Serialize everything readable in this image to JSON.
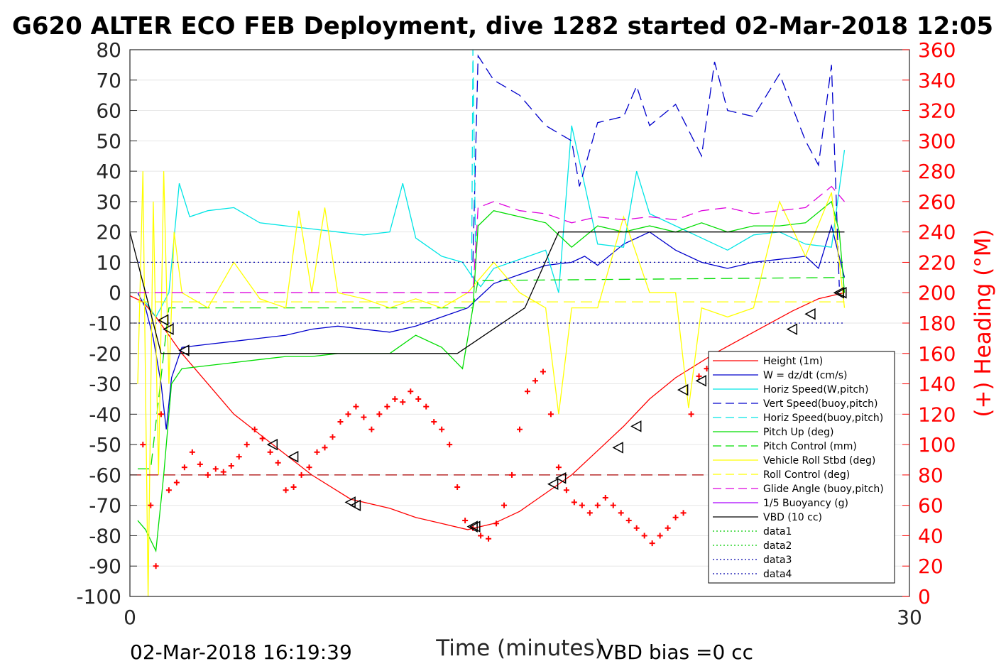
{
  "chart_data": {
    "type": "line",
    "title": "G620 ALTER ECO FEB Deployment, dive 1282 started 02-Mar-2018 12:05",
    "xlabel": "Time (minutes)",
    "ylabel_right": "(+) Heading (°M)",
    "xlim": [
      0,
      30
    ],
    "ylim": [
      -100,
      80
    ],
    "ylim_right": [
      0,
      360
    ],
    "x_ticks": [
      "0",
      "30"
    ],
    "y_ticks": [
      "80",
      "70",
      "60",
      "50",
      "40",
      "30",
      "20",
      "10",
      "0",
      "-10",
      "-20",
      "-30",
      "-40",
      "-50",
      "-60",
      "-70",
      "-80",
      "-90",
      "-100"
    ],
    "y_ticks_right": [
      "360",
      "340",
      "320",
      "300",
      "280",
      "260",
      "240",
      "220",
      "200",
      "180",
      "160",
      "140",
      "120",
      "100",
      "80",
      "60",
      "40",
      "20",
      "0"
    ],
    "grid": "horizontal",
    "legend_position": "lower-right",
    "legend": [
      {
        "label": "Height (1m)",
        "color": "#ff0000",
        "dash": "solid"
      },
      {
        "label": "W = dz/dt (cm/s)",
        "color": "#0000cc",
        "dash": "solid"
      },
      {
        "label": "Horiz Speed(W,pitch)",
        "color": "#00e5e5",
        "dash": "solid"
      },
      {
        "label": "Vert Speed(buoy,pitch)",
        "color": "#0000cc",
        "dash": "dashed"
      },
      {
        "label": "Horiz Speed(buoy,pitch)",
        "color": "#00e5e5",
        "dash": "dashed"
      },
      {
        "label": "Pitch Up (deg)",
        "color": "#00dd00",
        "dash": "solid"
      },
      {
        "label": "Pitch Control (mm)",
        "color": "#00dd00",
        "dash": "dashed"
      },
      {
        "label": "Vehicle Roll Stbd (deg)",
        "color": "#ffff00",
        "dash": "solid"
      },
      {
        "label": "Roll Control (deg)",
        "color": "#ffff00",
        "dash": "dashed"
      },
      {
        "label": "Glide Angle (buoy,pitch)",
        "color": "#dd00dd",
        "dash": "dashed"
      },
      {
        "label": "1/5 Buoyancy (g)",
        "color": "#aa00ff",
        "dash": "solid"
      },
      {
        "label": "VBD (10 cc)",
        "color": "#000000",
        "dash": "solid"
      },
      {
        "label": "data1",
        "color": "#00cc00",
        "dash": "dotted"
      },
      {
        "label": "data2",
        "color": "#00cc00",
        "dash": "dotted"
      },
      {
        "label": "data3",
        "color": "#0000aa",
        "dash": "dotted"
      },
      {
        "label": "data4",
        "color": "#0000aa",
        "dash": "dotted"
      }
    ],
    "series": [
      {
        "name": "Height (1m)",
        "color": "#ff0000",
        "dash": "solid",
        "x": [
          0,
          0.5,
          1.0,
          1.5,
          2.0,
          3.0,
          4.0,
          5.5,
          7.0,
          8.5,
          10.0,
          11.0,
          12.0,
          13.0,
          14.0,
          15.0,
          16.0,
          17.0,
          18.0,
          19.0,
          20.0,
          21.0,
          22.5,
          24.0,
          25.5,
          26.5,
          27.5
        ],
        "y": [
          -1,
          -3,
          -8,
          -14,
          -20,
          -30,
          -40,
          -50,
          -60,
          -68,
          -71,
          -74,
          -76,
          -78,
          -76,
          -72,
          -66,
          -60,
          -52,
          -44,
          -35,
          -28,
          -20,
          -13,
          -6,
          -2,
          0
        ]
      },
      {
        "name": "W = dz/dt (cm/s)",
        "color": "#0000cc",
        "dash": "solid",
        "x": [
          0.3,
          0.6,
          0.9,
          1.2,
          1.4,
          1.6,
          2.0,
          3.0,
          4.0,
          5.0,
          6.0,
          7.0,
          8.0,
          9.0,
          10.0,
          11.0,
          12.0,
          13.0,
          13.5,
          14.0,
          15.0,
          16.0,
          17.0,
          17.5,
          18.0,
          19.0,
          20.0,
          21.0,
          22.0,
          23.0,
          24.0,
          25.0,
          26.0,
          26.5,
          27.0,
          27.5
        ],
        "y": [
          0,
          -5,
          -15,
          -30,
          -45,
          -28,
          -18,
          -17,
          -16,
          -15,
          -14,
          -12,
          -11,
          -12,
          -13,
          -11,
          -8,
          -5,
          -1,
          3,
          6,
          9,
          10,
          12,
          9,
          16,
          20,
          14,
          10,
          8,
          10,
          11,
          12,
          8,
          22,
          5
        ]
      },
      {
        "name": "Horiz Speed(W,pitch)",
        "color": "#00e5e5",
        "dash": "solid",
        "x": [
          0.5,
          1.0,
          1.5,
          1.9,
          2.3,
          3.0,
          4.0,
          5.0,
          6.0,
          7.0,
          8.0,
          9.0,
          10.0,
          10.5,
          11.0,
          12.0,
          12.8,
          13.2,
          13.5,
          14.0,
          15.0,
          16.0,
          16.5,
          17.0,
          18.0,
          19.0,
          19.5,
          20.0,
          21.0,
          22.0,
          23.0,
          24.0,
          25.0,
          26.0,
          27.0,
          27.5
        ],
        "y": [
          -2,
          -8,
          0,
          36,
          25,
          27,
          28,
          23,
          22,
          21,
          20,
          19,
          20,
          36,
          18,
          12,
          10,
          5,
          2,
          8,
          11,
          14,
          0,
          55,
          16,
          15,
          40,
          26,
          22,
          18,
          14,
          19,
          20,
          16,
          15,
          47
        ]
      },
      {
        "name": "Vert Speed(buoy,pitch)",
        "color": "#0000cc",
        "dash": "dashed",
        "x": [
          13.2,
          13.4,
          14.0,
          15.0,
          16.0,
          17.0,
          17.3,
          18.0,
          19.0,
          19.5,
          20.0,
          21.0,
          22.0,
          22.5,
          23.0,
          24.0,
          25.0,
          26.0,
          26.5,
          27.0,
          27.3
        ],
        "y": [
          10,
          78,
          70,
          65,
          55,
          50,
          35,
          56,
          58,
          68,
          55,
          62,
          45,
          76,
          60,
          58,
          72,
          50,
          42,
          75,
          2
        ]
      },
      {
        "name": "Horiz Speed(buoy,pitch)",
        "color": "#00e5e5",
        "dash": "dashed",
        "x": [
          13.15,
          13.2,
          13.3
        ],
        "y": [
          5,
          80,
          15
        ]
      },
      {
        "name": "Pitch Up (deg)",
        "color": "#00dd00",
        "dash": "solid",
        "x": [
          0.3,
          0.6,
          1.0,
          1.3,
          1.6,
          2.0,
          3.0,
          4.0,
          5.0,
          6.0,
          7.0,
          8.0,
          9.0,
          10.0,
          11.0,
          12.0,
          12.8,
          13.2,
          13.4,
          14.0,
          15.0,
          16.0,
          17.0,
          18.0,
          19.0,
          20.0,
          21.0,
          22.0,
          23.0,
          24.0,
          25.0,
          26.0,
          27.0,
          27.3,
          27.5
        ],
        "y": [
          -75,
          -78,
          -85,
          -60,
          -30,
          -25,
          -24,
          -23,
          -22,
          -21,
          -21,
          -20,
          -20,
          -20,
          -14,
          -18,
          -25,
          -5,
          22,
          27,
          25,
          23,
          15,
          22,
          20,
          22,
          20,
          23,
          20,
          22,
          22,
          23,
          30,
          20,
          0
        ]
      },
      {
        "name": "Pitch Control (mm)",
        "color": "#00dd00",
        "dash": "dashed",
        "x": [
          0.3,
          0.8,
          1.5,
          13.2,
          13.4,
          27.5
        ],
        "y": [
          -58,
          -58,
          -5,
          -5,
          4,
          5
        ]
      },
      {
        "name": "Vehicle Roll Stbd (deg)",
        "color": "#ffff00",
        "dash": "solid",
        "x": [
          0.3,
          0.5,
          0.7,
          0.9,
          1.1,
          1.3,
          1.5,
          1.7,
          2.0,
          3.0,
          4.0,
          5.0,
          6.0,
          6.5,
          7.0,
          7.5,
          8.0,
          9.0,
          10.0,
          11.0,
          12.0,
          13.0,
          14.0,
          15.0,
          16.0,
          16.5,
          17.0,
          18.0,
          19.0,
          20.0,
          21.0,
          21.5,
          22.0,
          23.0,
          24.0,
          25.0,
          26.0,
          27.0,
          27.5
        ],
        "y": [
          -30,
          40,
          -100,
          30,
          -60,
          40,
          -30,
          20,
          0,
          -5,
          10,
          -2,
          -5,
          27,
          0,
          28,
          0,
          -2,
          -5,
          -2,
          -5,
          0,
          10,
          0,
          -5,
          -40,
          -5,
          -5,
          25,
          0,
          0,
          -38,
          -5,
          -8,
          -5,
          30,
          12,
          33,
          -5
        ]
      },
      {
        "name": "Roll Control (deg)",
        "color": "#ffff00",
        "dash": "dashed",
        "x": [
          0.3,
          27.5
        ],
        "y": [
          -3,
          -3
        ]
      },
      {
        "name": "Glide Angle (buoy,pitch)",
        "color": "#dd00dd",
        "dash": "dashed",
        "x": [
          0.3,
          13.2,
          13.4,
          14.0,
          15.0,
          16.0,
          17.0,
          18.0,
          19.0,
          20.0,
          21.0,
          22.0,
          23.0,
          24.0,
          25.0,
          26.0,
          27.0,
          27.5
        ],
        "y": [
          0,
          0,
          28,
          30,
          27,
          26,
          23,
          25,
          24,
          25,
          24,
          27,
          28,
          26,
          27,
          28,
          35,
          30
        ]
      },
      {
        "name": "VBD (10 cc)",
        "color": "#000000",
        "dash": "solid",
        "x": [
          0.0,
          1.2,
          2.5,
          10.0,
          12.6,
          15.2,
          16.5,
          19.0,
          22.0,
          25.0,
          27.5
        ],
        "y": [
          20,
          -20,
          -20,
          -20,
          -20,
          -5,
          20,
          20,
          20,
          20,
          20
        ]
      },
      {
        "name": "data3",
        "color": "#0000aa",
        "dash": "dotted",
        "x": [
          0,
          27.5
        ],
        "y": [
          10,
          10
        ]
      },
      {
        "name": "data4",
        "color": "#0000aa",
        "dash": "dotted",
        "x": [
          0,
          27.5
        ],
        "y": [
          -10,
          -10
        ]
      },
      {
        "name": "Heading reference",
        "color": "#aa0000",
        "dash": "dashed",
        "x": [
          0,
          27.5
        ],
        "y": [
          -60,
          -60
        ]
      }
    ],
    "heading_points": {
      "color": "#ff0000",
      "x": [
        0.5,
        0.8,
        1.0,
        1.2,
        1.5,
        1.8,
        2.1,
        2.4,
        2.7,
        3.0,
        3.3,
        3.6,
        3.9,
        4.2,
        4.5,
        4.8,
        5.1,
        5.4,
        5.7,
        6.0,
        6.3,
        6.6,
        6.9,
        7.2,
        7.5,
        7.8,
        8.1,
        8.4,
        8.7,
        9.0,
        9.3,
        9.6,
        9.9,
        10.2,
        10.5,
        10.8,
        11.1,
        11.4,
        11.7,
        12.0,
        12.3,
        12.6,
        12.9,
        13.2,
        13.5,
        13.8,
        14.1,
        14.4,
        14.7,
        15.0,
        15.3,
        15.6,
        15.9,
        16.2,
        16.5,
        16.8,
        17.1,
        17.4,
        17.7,
        18.0,
        18.3,
        18.6,
        18.9,
        19.2,
        19.5,
        19.8,
        20.1,
        20.4,
        20.7,
        21.0,
        21.3,
        21.6,
        21.9,
        22.2,
        22.5,
        22.8,
        23.1,
        23.4,
        23.7,
        24.0,
        24.3,
        24.6,
        24.9,
        25.2,
        25.5,
        25.8,
        26.1,
        26.4,
        26.7,
        27.0,
        27.3,
        27.5
      ],
      "y": [
        100,
        60,
        20,
        120,
        70,
        75,
        85,
        95,
        87,
        80,
        84,
        82,
        86,
        92,
        100,
        110,
        104,
        95,
        88,
        70,
        72,
        80,
        85,
        95,
        98,
        105,
        115,
        120,
        125,
        118,
        110,
        120,
        125,
        130,
        128,
        135,
        130,
        125,
        115,
        110,
        100,
        72,
        50,
        45,
        40,
        38,
        48,
        60,
        80,
        110,
        135,
        142,
        148,
        120,
        85,
        70,
        62,
        60,
        55,
        60,
        65,
        60,
        55,
        50,
        45,
        40,
        35,
        40,
        45,
        52,
        55,
        120,
        145,
        150,
        140,
        130,
        100,
        75,
        70,
        65,
        60,
        55,
        50,
        45,
        40,
        38,
        42,
        48,
        60,
        130,
        150,
        80
      ]
    },
    "markers": {
      "symbol": "triangle",
      "x": [
        1.3,
        1.5,
        2.1,
        5.5,
        6.3,
        8.5,
        8.7,
        13.2,
        13.3,
        16.3,
        16.6,
        18.8,
        19.5,
        21.3,
        22.0,
        25.5,
        26.2,
        27.3,
        27.4
      ],
      "y": [
        -9,
        -12,
        -19,
        -50,
        -54,
        -69,
        -70,
        -77,
        -77,
        -63,
        -61,
        -51,
        -44,
        -32,
        -29,
        -12,
        -7,
        0,
        0
      ]
    }
  },
  "footer": {
    "start_time": "02-Mar-2018 16:19:39",
    "vbd_bias": "VBD bias =0 cc"
  }
}
